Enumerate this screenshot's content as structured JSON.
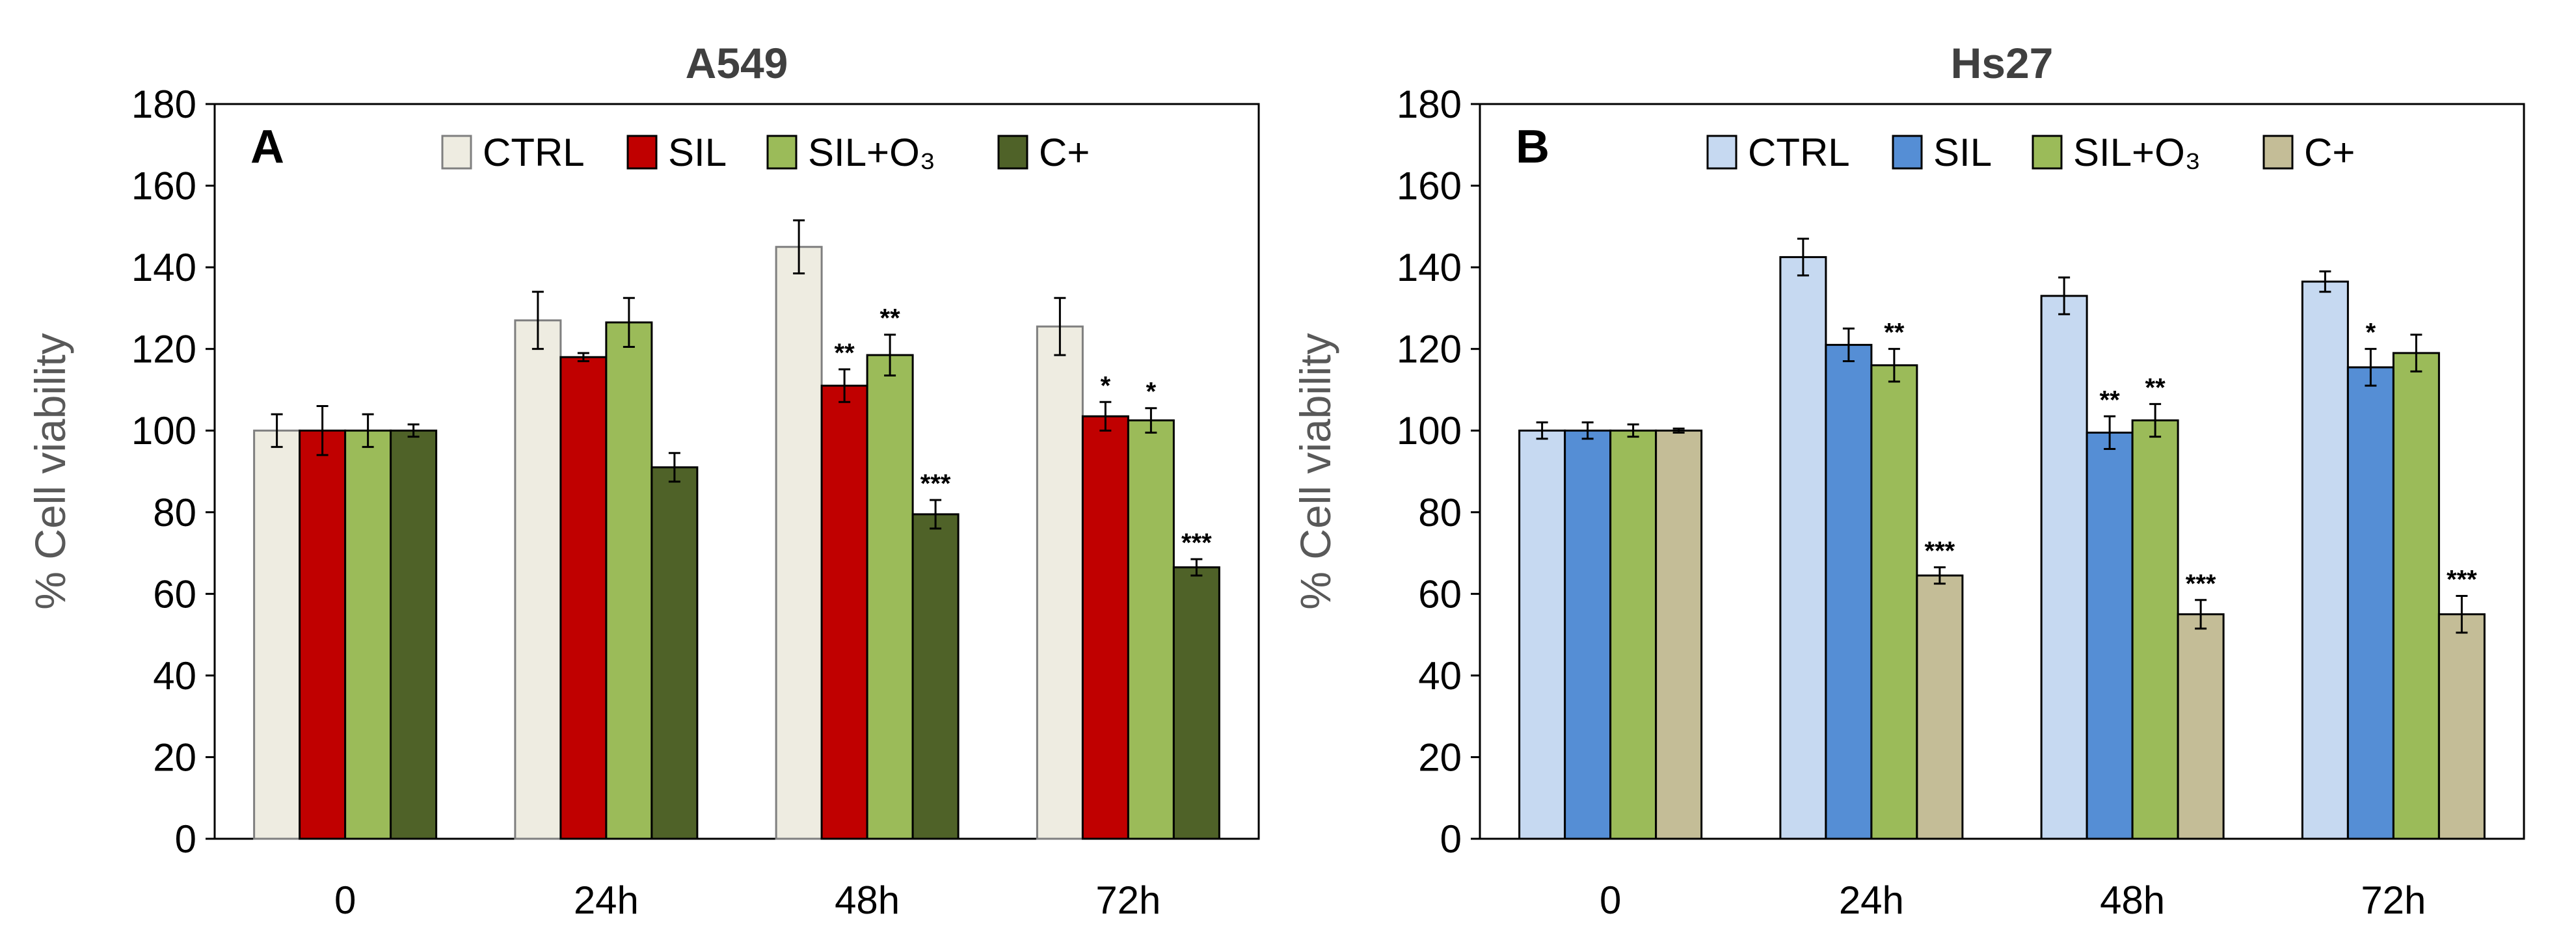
{
  "chart_data": [
    {
      "type": "bar",
      "title": "A549",
      "panel_label": "A",
      "xlabel": "",
      "ylabel": "% Cell viability",
      "ylim": [
        0,
        180
      ],
      "yticks": [
        0,
        20,
        40,
        60,
        80,
        100,
        120,
        140,
        160,
        180
      ],
      "categories": [
        "0",
        "24h",
        "48h",
        "72h"
      ],
      "legend_position": "top",
      "grid": false,
      "series": [
        {
          "name": "CTRL",
          "color": "#eeece1",
          "edge": "#7f7f7f",
          "values": [
            100,
            127,
            145,
            125.5
          ],
          "errors": [
            4,
            7,
            6.5,
            7
          ],
          "sig": [
            "",
            "",
            "",
            ""
          ]
        },
        {
          "name": "SIL",
          "color": "#c00000",
          "edge": "#000000",
          "values": [
            100,
            118,
            111,
            103.5
          ],
          "errors": [
            6,
            1,
            4,
            3.5
          ],
          "sig": [
            "",
            "",
            "**",
            "*"
          ]
        },
        {
          "name": "SIL+O₃",
          "color": "#9bbb59",
          "edge": "#000000",
          "values": [
            100,
            126.5,
            118.5,
            102.5
          ],
          "errors": [
            4,
            6,
            5,
            3
          ],
          "sig": [
            "",
            "",
            "**",
            "*"
          ]
        },
        {
          "name": "C+",
          "color": "#4f6228",
          "edge": "#000000",
          "values": [
            100,
            91,
            79.5,
            66.5
          ],
          "errors": [
            1.5,
            3.5,
            3.5,
            2
          ],
          "sig": [
            "",
            "",
            "***",
            "***"
          ]
        }
      ]
    },
    {
      "type": "bar",
      "title": "Hs27",
      "panel_label": "B",
      "xlabel": "",
      "ylabel": "% Cell viability",
      "ylim": [
        0,
        180
      ],
      "yticks": [
        0,
        20,
        40,
        60,
        80,
        100,
        120,
        140,
        160,
        180
      ],
      "categories": [
        "0",
        "24h",
        "48h",
        "72h"
      ],
      "legend_position": "top",
      "grid": false,
      "series": [
        {
          "name": "CTRL",
          "color": "#c6d9f1",
          "edge": "#000000",
          "values": [
            100,
            142.5,
            133,
            136.5
          ],
          "errors": [
            2,
            4.5,
            4.5,
            2.5
          ],
          "sig": [
            "",
            "",
            "",
            ""
          ]
        },
        {
          "name": "SIL",
          "color": "#558ed5",
          "edge": "#000000",
          "values": [
            100,
            121,
            99.5,
            115.5
          ],
          "errors": [
            2,
            4,
            4,
            4.5
          ],
          "sig": [
            "",
            "",
            "**",
            "*"
          ]
        },
        {
          "name": "SIL+O₃",
          "color": "#9bbb59",
          "edge": "#000000",
          "values": [
            100,
            116,
            102.5,
            119
          ],
          "errors": [
            1.5,
            4,
            4,
            4.5
          ],
          "sig": [
            "",
            "**",
            "**",
            ""
          ]
        },
        {
          "name": "C+",
          "color": "#c4bd97",
          "edge": "#000000",
          "values": [
            100,
            64.5,
            55,
            55
          ],
          "errors": [
            0.5,
            2,
            3.5,
            4.5
          ],
          "sig": [
            "",
            "***",
            "***",
            "***"
          ]
        }
      ]
    }
  ]
}
